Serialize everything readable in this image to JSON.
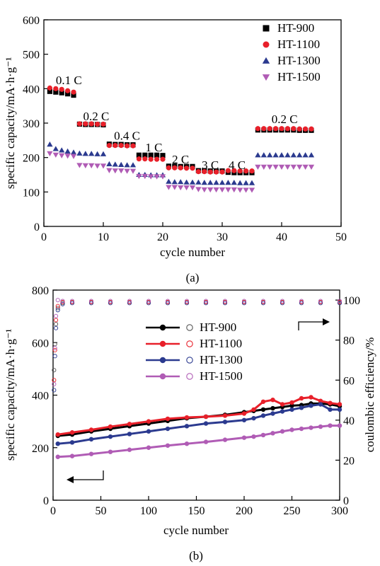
{
  "figure": {
    "label_a": "(a)",
    "label_b": "(b)"
  },
  "chart_data": [
    {
      "type": "scatter",
      "panel": "(a)",
      "xlabel": "cycle number",
      "ylabel": "specific capacity/mA·h·g⁻¹",
      "xlim": [
        0,
        50
      ],
      "ylim": [
        0,
        600
      ],
      "xticks": [
        0,
        10,
        20,
        30,
        40,
        50
      ],
      "yticks": [
        0,
        100,
        200,
        300,
        400,
        500,
        600
      ],
      "legend_position": "top-right",
      "rate_labels": [
        {
          "text": "0.1 C",
          "x": 4.2,
          "y": 413
        },
        {
          "text": "0.2 C",
          "x": 8.8,
          "y": 308
        },
        {
          "text": "0.4 C",
          "x": 14.0,
          "y": 252
        },
        {
          "text": "1 C",
          "x": 18.5,
          "y": 218
        },
        {
          "text": "2 C",
          "x": 23.0,
          "y": 183
        },
        {
          "text": "3 C",
          "x": 28.0,
          "y": 166
        },
        {
          "text": "4 C",
          "x": 32.5,
          "y": 166
        },
        {
          "text": "0.2 C",
          "x": 40.5,
          "y": 300
        }
      ],
      "series": [
        {
          "name": "HT-900",
          "marker": "square",
          "color": "#000000",
          "x": [
            1,
            2,
            3,
            4,
            5,
            6,
            7,
            8,
            9,
            10,
            11,
            12,
            13,
            14,
            15,
            16,
            17,
            18,
            19,
            20,
            21,
            22,
            23,
            24,
            25,
            26,
            27,
            28,
            29,
            30,
            31,
            32,
            33,
            34,
            35,
            36,
            37,
            38,
            39,
            40,
            41,
            42,
            43,
            44,
            45
          ],
          "y": [
            392,
            390,
            388,
            385,
            381,
            297,
            296,
            296,
            296,
            295,
            239,
            238,
            238,
            237,
            237,
            207,
            207,
            207,
            207,
            206,
            175,
            175,
            174,
            174,
            174,
            162,
            162,
            161,
            161,
            161,
            157,
            156,
            156,
            156,
            156,
            280,
            280,
            280,
            280,
            280,
            280,
            280,
            279,
            279,
            279
          ]
        },
        {
          "name": "HT-1100",
          "marker": "circle",
          "color": "#e8202a",
          "x": [
            1,
            2,
            3,
            4,
            5,
            6,
            7,
            8,
            9,
            10,
            11,
            12,
            13,
            14,
            15,
            16,
            17,
            18,
            19,
            20,
            21,
            22,
            23,
            24,
            25,
            26,
            27,
            28,
            29,
            30,
            31,
            32,
            33,
            34,
            35,
            36,
            37,
            38,
            39,
            40,
            41,
            42,
            43,
            44,
            45
          ],
          "y": [
            402,
            400,
            398,
            394,
            390,
            298,
            298,
            298,
            297,
            297,
            235,
            235,
            235,
            234,
            234,
            196,
            196,
            195,
            195,
            195,
            170,
            170,
            170,
            169,
            169,
            159,
            159,
            158,
            158,
            158,
            162,
            162,
            161,
            161,
            161,
            284,
            284,
            284,
            284,
            284,
            284,
            284,
            283,
            283,
            283
          ]
        },
        {
          "name": "HT-1300",
          "marker": "triangle-up",
          "color": "#2b3a8f",
          "x": [
            1,
            2,
            3,
            4,
            5,
            6,
            7,
            8,
            9,
            10,
            11,
            12,
            13,
            14,
            15,
            16,
            17,
            18,
            19,
            20,
            21,
            22,
            23,
            24,
            25,
            26,
            27,
            28,
            29,
            30,
            31,
            32,
            33,
            34,
            35,
            36,
            37,
            38,
            39,
            40,
            41,
            42,
            43,
            44,
            45
          ],
          "y": [
            238,
            225,
            221,
            218,
            215,
            212,
            211,
            211,
            210,
            210,
            181,
            180,
            179,
            178,
            178,
            150,
            150,
            149,
            149,
            149,
            130,
            129,
            129,
            128,
            128,
            128,
            127,
            127,
            127,
            127,
            127,
            127,
            126,
            126,
            126,
            207,
            207,
            207,
            207,
            207,
            207,
            207,
            207,
            207,
            207
          ]
        },
        {
          "name": "HT-1500",
          "marker": "triangle-down",
          "color": "#b05cb5",
          "x": [
            1,
            2,
            3,
            4,
            5,
            6,
            7,
            8,
            9,
            10,
            11,
            12,
            13,
            14,
            15,
            16,
            17,
            18,
            19,
            20,
            21,
            22,
            23,
            24,
            25,
            26,
            27,
            28,
            29,
            30,
            31,
            32,
            33,
            34,
            35,
            36,
            37,
            38,
            39,
            40,
            41,
            42,
            43,
            44,
            45
          ],
          "y": [
            212,
            208,
            206,
            205,
            204,
            178,
            177,
            177,
            176,
            176,
            163,
            162,
            162,
            161,
            161,
            146,
            146,
            145,
            145,
            145,
            114,
            114,
            113,
            113,
            113,
            108,
            107,
            107,
            107,
            107,
            107,
            107,
            106,
            106,
            106,
            173,
            173,
            173,
            173,
            173,
            173,
            173,
            173,
            173,
            173
          ]
        }
      ]
    },
    {
      "type": "line",
      "panel": "(b)",
      "xlabel": "cycle number",
      "ylabel": "specific capacity/mA·h·g⁻¹",
      "y2label": "coulombic efficiency/%",
      "xlim": [
        0,
        300
      ],
      "ylim": [
        0,
        800
      ],
      "y2lim": [
        0,
        105
      ],
      "xticks": [
        0,
        50,
        100,
        150,
        200,
        250,
        300
      ],
      "yticks": [
        0,
        200,
        400,
        600,
        800
      ],
      "y2ticks": [
        0,
        20,
        40,
        60,
        80,
        100
      ],
      "legend_position": "center",
      "arrows": [
        {
          "direction": "right",
          "points_to": "y2"
        },
        {
          "direction": "left",
          "points_to": "y"
        }
      ],
      "capacity_series": [
        {
          "name": "HT-900",
          "color": "#000000",
          "x": [
            5,
            20,
            40,
            60,
            80,
            100,
            120,
            140,
            160,
            180,
            200,
            210,
            220,
            230,
            240,
            250,
            260,
            270,
            280,
            290,
            300
          ],
          "y": [
            245,
            250,
            262,
            272,
            282,
            292,
            302,
            312,
            318,
            325,
            335,
            340,
            345,
            350,
            355,
            360,
            362,
            368,
            368,
            365,
            358
          ]
        },
        {
          "name": "HT-1100",
          "color": "#e8202a",
          "x": [
            5,
            20,
            40,
            60,
            80,
            100,
            120,
            140,
            160,
            180,
            200,
            210,
            220,
            230,
            240,
            250,
            260,
            270,
            280,
            290,
            300
          ],
          "y": [
            250,
            258,
            268,
            280,
            290,
            300,
            310,
            315,
            318,
            322,
            330,
            345,
            375,
            382,
            365,
            372,
            388,
            392,
            378,
            370,
            365
          ]
        },
        {
          "name": "HT-1300",
          "color": "#2b3a8f",
          "x": [
            5,
            20,
            40,
            60,
            80,
            100,
            120,
            140,
            160,
            180,
            200,
            210,
            220,
            230,
            240,
            250,
            260,
            270,
            280,
            290,
            300
          ],
          "y": [
            215,
            220,
            232,
            242,
            252,
            262,
            272,
            282,
            292,
            298,
            305,
            312,
            322,
            330,
            338,
            345,
            352,
            360,
            365,
            345,
            345
          ]
        },
        {
          "name": "HT-1500",
          "color": "#b05cb5",
          "x": [
            5,
            20,
            40,
            60,
            80,
            100,
            120,
            140,
            160,
            180,
            200,
            210,
            220,
            230,
            240,
            250,
            260,
            270,
            280,
            290,
            300
          ],
          "y": [
            165,
            168,
            176,
            184,
            192,
            200,
            208,
            215,
            222,
            230,
            238,
            242,
            248,
            255,
            262,
            268,
            272,
            276,
            280,
            284,
            284
          ]
        }
      ],
      "efficiency_series": [
        {
          "name": "HT-900",
          "color": "#555555",
          "x": [
            1,
            2,
            3,
            5,
            10,
            20,
            40,
            60,
            80,
            100,
            120,
            140,
            160,
            180,
            200,
            220,
            240,
            260,
            280,
            300
          ],
          "y": [
            65,
            78,
            88,
            96,
            98.5,
            99,
            99,
            99,
            99,
            99,
            99,
            99,
            99,
            99,
            99,
            99,
            99,
            99,
            99,
            99
          ]
        },
        {
          "name": "HT-1100",
          "color": "#e8202a",
          "x": [
            1,
            2,
            3,
            5,
            10,
            20,
            40,
            60,
            80,
            100,
            120,
            140,
            160,
            180,
            200,
            220,
            240,
            260,
            280,
            300
          ],
          "y": [
            60,
            75,
            90,
            97,
            99,
            99,
            99,
            99,
            99,
            99,
            99,
            99,
            99,
            99,
            99,
            99,
            99,
            99,
            99,
            99
          ]
        },
        {
          "name": "HT-1300",
          "color": "#2b3a8f",
          "x": [
            1,
            2,
            3,
            5,
            10,
            20,
            40,
            60,
            80,
            100,
            120,
            140,
            160,
            180,
            200,
            220,
            240,
            260,
            280,
            300
          ],
          "y": [
            55,
            72,
            86,
            95,
            98,
            98.5,
            98.5,
            98.5,
            98.5,
            98.5,
            98.5,
            98.5,
            98.5,
            98.5,
            98.5,
            98.5,
            98.5,
            98.5,
            98.5,
            98.5
          ]
        },
        {
          "name": "HT-1500",
          "color": "#b05cb5",
          "x": [
            1,
            2,
            3,
            5,
            10,
            20,
            40,
            60,
            80,
            100,
            120,
            140,
            160,
            180,
            200,
            220,
            240,
            260,
            280,
            300
          ],
          "y": [
            58,
            76,
            92,
            100,
            99.5,
            99.5,
            99.5,
            99.5,
            99.5,
            99.5,
            99.5,
            99.5,
            99.5,
            99.5,
            99.5,
            99.5,
            99.5,
            99.5,
            99.5,
            99.5
          ]
        }
      ]
    }
  ]
}
